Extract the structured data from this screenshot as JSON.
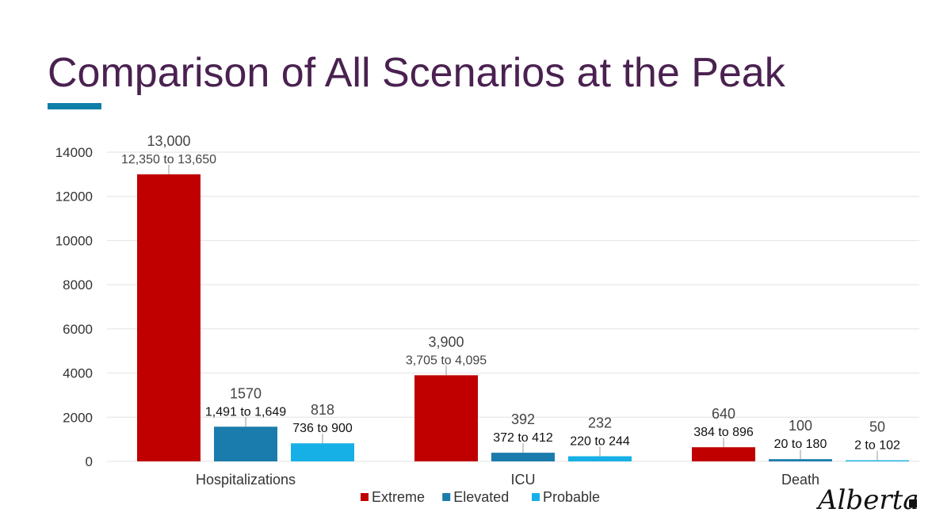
{
  "title": "Comparison of All Scenarios at the Peak",
  "logo_text": "Alberta",
  "colors": {
    "title": "#4a2150",
    "accent_bar": "#0f7fa8",
    "grid": "#e2e2e2",
    "axis_text": "#333333",
    "data_label": "#444444"
  },
  "chart_data": {
    "type": "bar",
    "categories": [
      "Hospitalizations",
      "ICU",
      "Death"
    ],
    "ylim": [
      0,
      14000
    ],
    "yticks": [
      "0",
      "2000",
      "4000",
      "6000",
      "8000",
      "10000",
      "12000",
      "14000"
    ],
    "grid": true,
    "legend_position": "bottom",
    "series": [
      {
        "name": "Extreme",
        "color": "#c00000",
        "values": [
          13000,
          3900,
          640
        ],
        "labels": [
          "13,000",
          "3,900",
          "640"
        ],
        "ranges": [
          "12,350 to 13,650",
          "3,705 to 4,095",
          "384 to 896"
        ]
      },
      {
        "name": "Elevated",
        "color": "#1a7cad",
        "values": [
          1570,
          392,
          100
        ],
        "labels": [
          "1570",
          "392",
          "100"
        ],
        "ranges": [
          "1,491 to 1,649",
          "372 to 412",
          "20 to 180"
        ]
      },
      {
        "name": "Probable",
        "color": "#17b0e6",
        "values": [
          818,
          232,
          50
        ],
        "labels": [
          "818",
          "232",
          "50"
        ],
        "ranges": [
          "736 to 900",
          "220 to 244",
          "2 to 102"
        ]
      }
    ]
  }
}
